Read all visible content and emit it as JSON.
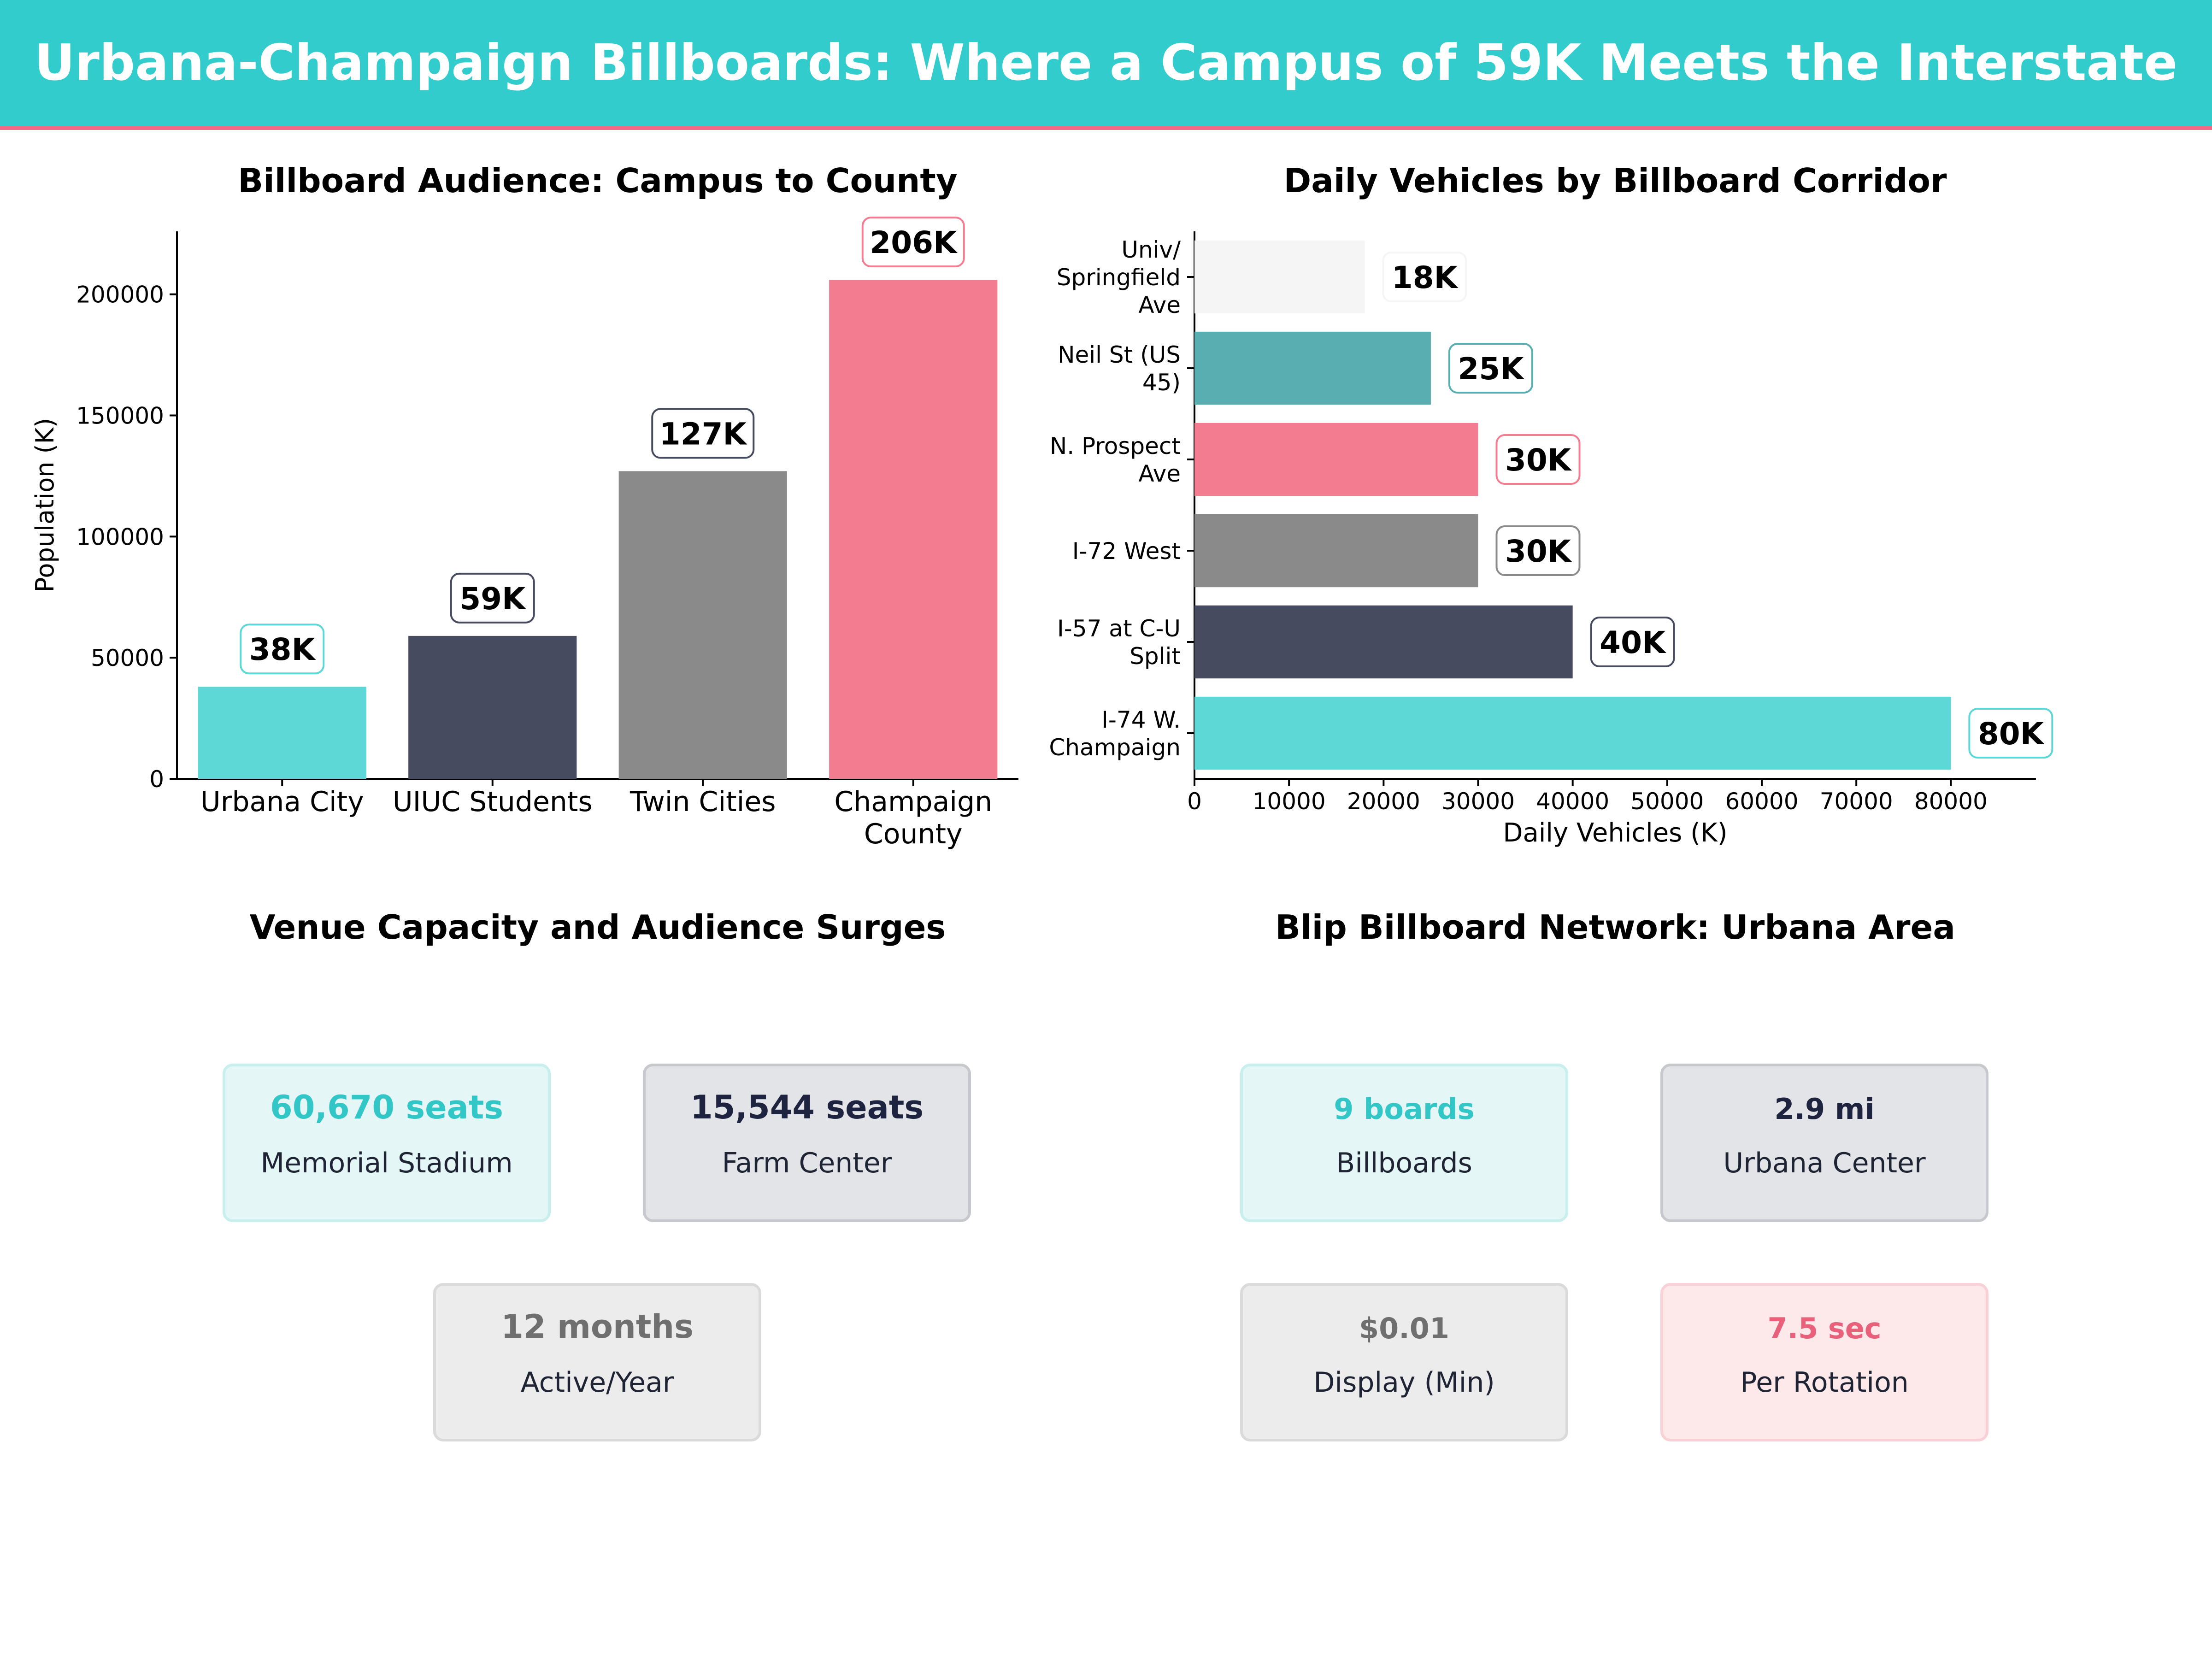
{
  "header": {
    "title": "Urbana-Champaign Billboards: Where a Campus of 59K Meets the Interstate"
  },
  "colors": {
    "teal": "#5dd8d6",
    "navy": "#474b5f",
    "gray": "#8a8a8a",
    "pink": "#f47c91",
    "light": "#f5f5f5",
    "dark_teal": "#58aeb0"
  },
  "chart_data": [
    {
      "type": "bar",
      "title": "Billboard Audience: Campus to County",
      "categories": [
        "Urbana City",
        "UIUC Students",
        "Twin Cities",
        "Champaign County"
      ],
      "values": [
        38000,
        59000,
        127000,
        206000
      ],
      "data_labels": [
        "38K",
        "59K",
        "127K",
        "206K"
      ],
      "bar_colors": [
        "#5dd8d6",
        "#474b5f",
        "#8a8a8a",
        "#f47c91"
      ],
      "xlabel": "",
      "ylabel": "Population (K)",
      "ylim": [
        0,
        226000
      ],
      "yticks": [
        0,
        50000,
        100000,
        150000,
        200000
      ],
      "ytick_labels": [
        "0",
        "50000",
        "100000",
        "150000",
        "200000"
      ],
      "grid": false
    },
    {
      "type": "bar",
      "orientation": "horizontal",
      "title": "Daily Vehicles by Billboard Corridor",
      "categories": [
        "Univ/ Springfield Ave",
        "Neil St (US 45)",
        "N. Prospect Ave",
        "I-72 West",
        "I-57 at C-U Split",
        "I-74 W. Champaign"
      ],
      "values": [
        18000,
        25000,
        30000,
        30000,
        40000,
        80000
      ],
      "data_labels": [
        "18K",
        "25K",
        "30K",
        "30K",
        "40K",
        "80K"
      ],
      "bar_colors": [
        "#f5f5f5",
        "#58aeb0",
        "#f47c91",
        "#8a8a8a",
        "#474b5f",
        "#5dd8d6"
      ],
      "xlabel": "Daily Vehicles (K)",
      "ylabel": "",
      "xlim": [
        0,
        89000
      ],
      "xticks": [
        0,
        10000,
        20000,
        30000,
        40000,
        50000,
        60000,
        70000,
        80000
      ],
      "xtick_labels": [
        "0",
        "10000",
        "20000",
        "30000",
        "40000",
        "50000",
        "60000",
        "70000",
        "80000"
      ],
      "grid": false
    }
  ],
  "venue_panel": {
    "title": "Venue Capacity and Audience Surges",
    "cards": [
      {
        "value": "60,670 seats",
        "label": "Memorial Stadium"
      },
      {
        "value": "15,544 seats",
        "label": "Farm Center"
      },
      {
        "value": "12 months",
        "label": "Active/Year"
      }
    ]
  },
  "network_panel": {
    "title": "Blip Billboard Network: Urbana Area",
    "cards": [
      {
        "value": "9 boards",
        "label": "Billboards"
      },
      {
        "value": "2.9 mi",
        "label": "Urbana Center"
      },
      {
        "value": "$0.01",
        "label": "Display (Min)"
      },
      {
        "value": "7.5 sec",
        "label": "Per Rotation"
      }
    ]
  }
}
